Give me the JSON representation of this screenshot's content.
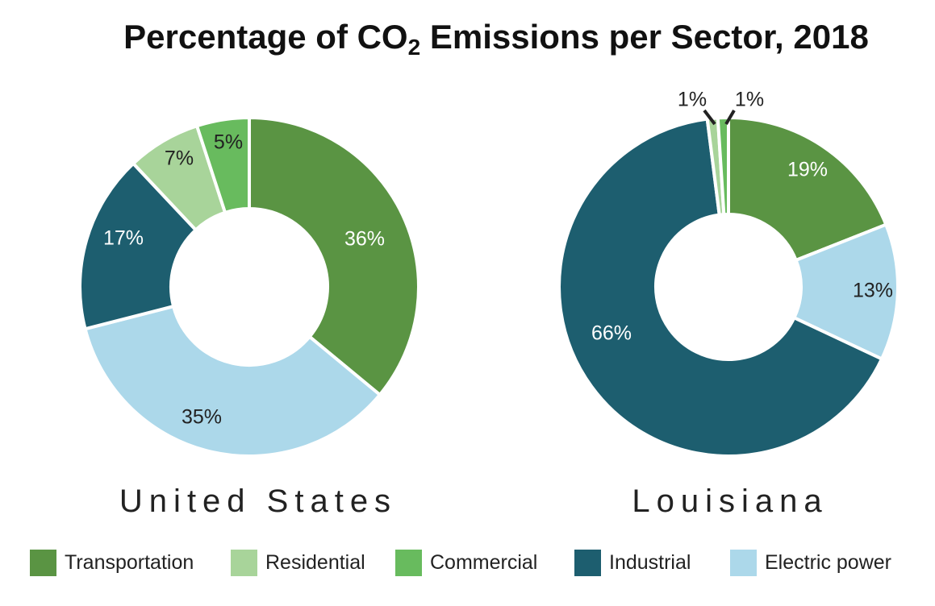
{
  "title_main": "Percentage of CO",
  "title_sub": "2",
  "title_tail": " Emissions per Sector, 2018",
  "colors": {
    "Transportation": "#5a9443",
    "Residential": "#a8d49a",
    "Commercial": "#68bb5e",
    "Industrial": "#1d5e6f",
    "Electric power": "#acd8ea"
  },
  "legend": [
    "Transportation",
    "Residential",
    "Commercial",
    "Industrial",
    "Electric power"
  ],
  "chart_data": [
    {
      "type": "pie",
      "title": "United States",
      "series": [
        {
          "name": "Transportation",
          "value": 36,
          "label": "36%"
        },
        {
          "name": "Electric power",
          "value": 35,
          "label": "35%"
        },
        {
          "name": "Industrial",
          "value": 17,
          "label": "17%"
        },
        {
          "name": "Residential",
          "value": 7,
          "label": "7%"
        },
        {
          "name": "Commercial",
          "value": 5,
          "label": "5%"
        }
      ]
    },
    {
      "type": "pie",
      "title": "Louisiana",
      "series": [
        {
          "name": "Transportation",
          "value": 19,
          "label": "19%"
        },
        {
          "name": "Electric power",
          "value": 13,
          "label": "13%"
        },
        {
          "name": "Industrial",
          "value": 66,
          "label": "66%"
        },
        {
          "name": "Residential",
          "value": 1,
          "label": "1%"
        },
        {
          "name": "Commercial",
          "value": 1,
          "label": "1%"
        }
      ]
    }
  ]
}
